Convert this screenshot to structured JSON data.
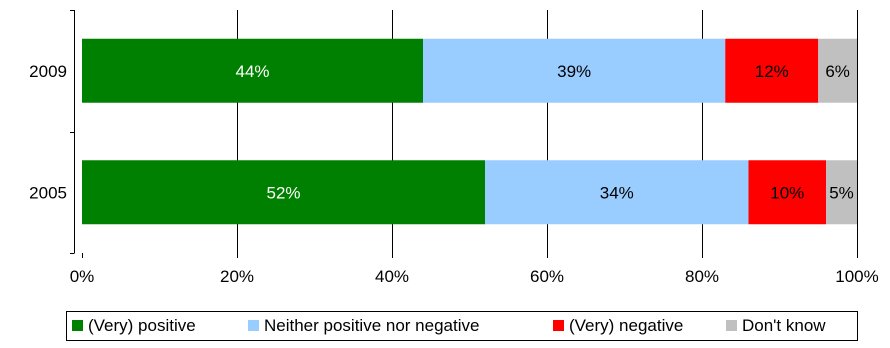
{
  "chart_data": {
    "type": "bar",
    "orientation": "horizontal",
    "stacked": "percent",
    "categories": [
      "2009",
      "2005"
    ],
    "series": [
      {
        "name": "(Very) positive",
        "color": "#008000",
        "values": [
          44,
          52
        ],
        "labels": [
          "44%",
          "52%"
        ],
        "label_color": "#ffffff"
      },
      {
        "name": "Neither positive nor negative",
        "color": "#99ccff",
        "values": [
          39,
          34
        ],
        "labels": [
          "39%",
          "34%"
        ],
        "label_color": "#000000"
      },
      {
        "name": "(Very) negative",
        "color": "#ff0000",
        "values": [
          12,
          10
        ],
        "labels": [
          "12%",
          "10%"
        ],
        "label_color": "#000000"
      },
      {
        "name": "Don't know",
        "color": "#c0c0c0",
        "values": [
          6,
          5
        ],
        "labels": [
          "6%",
          "5%"
        ],
        "label_color": "#000000"
      }
    ],
    "xlim": [
      0,
      100
    ],
    "xticks": [
      "0%",
      "20%",
      "40%",
      "60%",
      "80%",
      "100%"
    ],
    "grid": true,
    "legend_position": "bottom",
    "title": "",
    "xlabel": "",
    "ylabel": ""
  }
}
